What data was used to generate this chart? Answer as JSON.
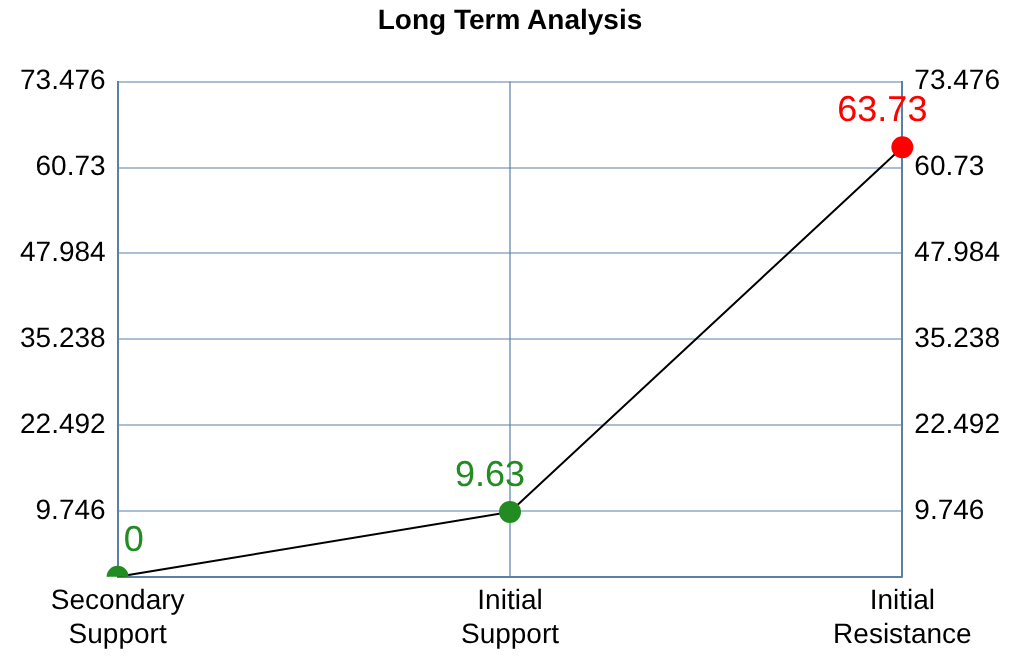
{
  "chart_data": {
    "type": "line",
    "title": "Long Term Analysis",
    "categories": [
      "Secondary Support",
      "Initial Support",
      "Initial Resistance"
    ],
    "series": [
      {
        "color": "#000000",
        "colors": [
          "#228b22",
          "#228b22",
          "#ff0000"
        ],
        "values": [
          0,
          9.63,
          63.73
        ]
      }
    ],
    "ylim": [
      0,
      73.476
    ],
    "yticks": [
      9.746,
      22.492,
      35.238,
      47.984,
      60.73,
      73.476
    ],
    "y2lim": [
      0,
      73.476
    ],
    "y2ticks": [
      9.746,
      22.492,
      35.238,
      47.984,
      60.73,
      73.476
    ],
    "grid": true,
    "marker": "circle",
    "line_style": "solid",
    "data_labels": true
  }
}
